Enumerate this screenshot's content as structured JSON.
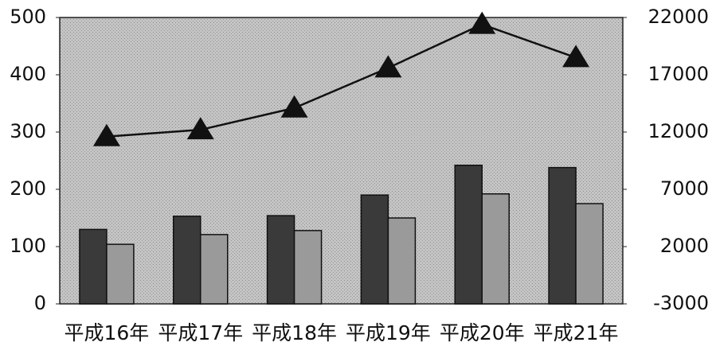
{
  "chart_data": {
    "type": "bar",
    "categories": [
      "平成16年",
      "平成17年",
      "平成18年",
      "平成19年",
      "平成20年",
      "平成21年"
    ],
    "series": [
      {
        "color": "#3a3a3a",
        "values": [
          130,
          153,
          154,
          190,
          242,
          238
        ]
      },
      {
        "color": "#9a9a9a",
        "values": [
          104,
          121,
          128,
          150,
          192,
          175
        ]
      },
      {
        "color": "#111111",
        "type": "line",
        "axis": "y2",
        "values": [
          11600,
          12200,
          14100,
          17600,
          21400,
          18500
        ]
      }
    ],
    "ylim": [
      0,
      500
    ],
    "yticks": [
      0,
      100,
      200,
      300,
      400,
      500
    ],
    "y2lim": [
      -3000,
      22000
    ],
    "y2ticks": [
      -3000,
      2000,
      7000,
      12000,
      17000,
      22000
    ],
    "plot_background": "#b8b8b8"
  }
}
